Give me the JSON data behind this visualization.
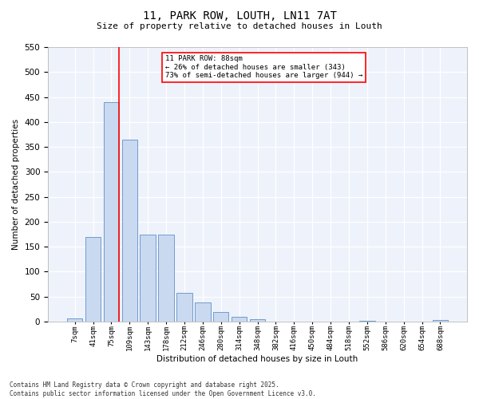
{
  "title": "11, PARK ROW, LOUTH, LN11 7AT",
  "subtitle": "Size of property relative to detached houses in Louth",
  "xlabel": "Distribution of detached houses by size in Louth",
  "ylabel": "Number of detached properties",
  "bins": [
    "7sqm",
    "41sqm",
    "75sqm",
    "109sqm",
    "143sqm",
    "178sqm",
    "212sqm",
    "246sqm",
    "280sqm",
    "314sqm",
    "348sqm",
    "382sqm",
    "416sqm",
    "450sqm",
    "484sqm",
    "518sqm",
    "552sqm",
    "586sqm",
    "620sqm",
    "654sqm",
    "688sqm"
  ],
  "values": [
    7,
    170,
    440,
    365,
    175,
    175,
    57,
    38,
    20,
    9,
    5,
    0,
    0,
    0,
    0,
    0,
    2,
    0,
    0,
    0,
    3
  ],
  "bar_color": "#c9d9f0",
  "bar_edge_color": "#6090c8",
  "vline_color": "red",
  "annotation_title": "11 PARK ROW: 88sqm",
  "annotation_line1": "← 26% of detached houses are smaller (343)",
  "annotation_line2": "73% of semi-detached houses are larger (944) →",
  "ylim": [
    0,
    550
  ],
  "yticks": [
    0,
    50,
    100,
    150,
    200,
    250,
    300,
    350,
    400,
    450,
    500,
    550
  ],
  "footer_line1": "Contains HM Land Registry data © Crown copyright and database right 2025.",
  "footer_line2": "Contains public sector information licensed under the Open Government Licence v3.0.",
  "bg_color": "#eef2fb"
}
